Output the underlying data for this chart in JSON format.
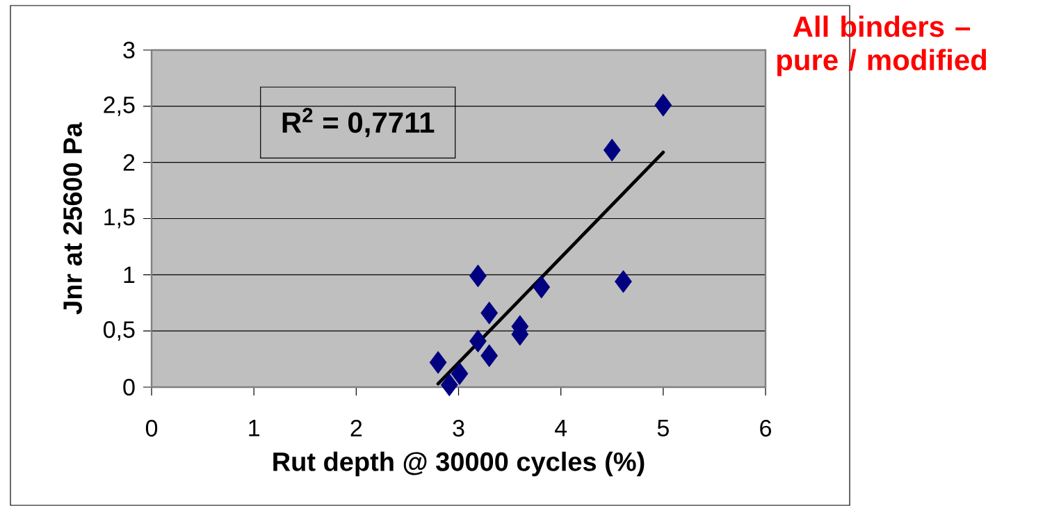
{
  "chart_data": {
    "type": "scatter",
    "title": "All binders – pure / modified",
    "xlabel": "Rut depth @ 30000 cycles (%)",
    "ylabel": "Jnr at 25600 Pa",
    "annotations": [
      "**R$^{2}$ = 0,7711**"
    ],
    "series": [
      {
        "color": "#000080",
        "x": [
          2.8,
          2.91,
          3.01,
          3.19,
          3.19,
          3.3,
          3.3,
          3.6,
          3.6,
          3.81,
          4.61,
          4.5,
          5.0
        ],
        "values": [
          0.22,
          0.02,
          0.12,
          0.99,
          0.41,
          0.66,
          0.28,
          0.54,
          0.47,
          0.89,
          0.94,
          2.11,
          2.51
        ]
      },
      {
        "type": "line",
        "color": "#000000",
        "marker": "none",
        "line_style": "solid",
        "x": [
          2.8,
          5.0
        ],
        "values": [
          0.03,
          2.09
        ]
      }
    ],
    "xlim": [
      0,
      6
    ],
    "xticks": [
      0,
      1,
      2,
      3,
      4,
      5,
      6
    ],
    "ylim": [
      0,
      3
    ],
    "yticks": [
      0,
      {
        "value": 0.5,
        "label": "0,5"
      },
      1,
      {
        "value": 1.5,
        "label": "1,5"
      },
      2,
      {
        "value": 2.5,
        "label": "2,5"
      },
      3
    ],
    "grid": "y",
    "marker": "diamond"
  }
}
